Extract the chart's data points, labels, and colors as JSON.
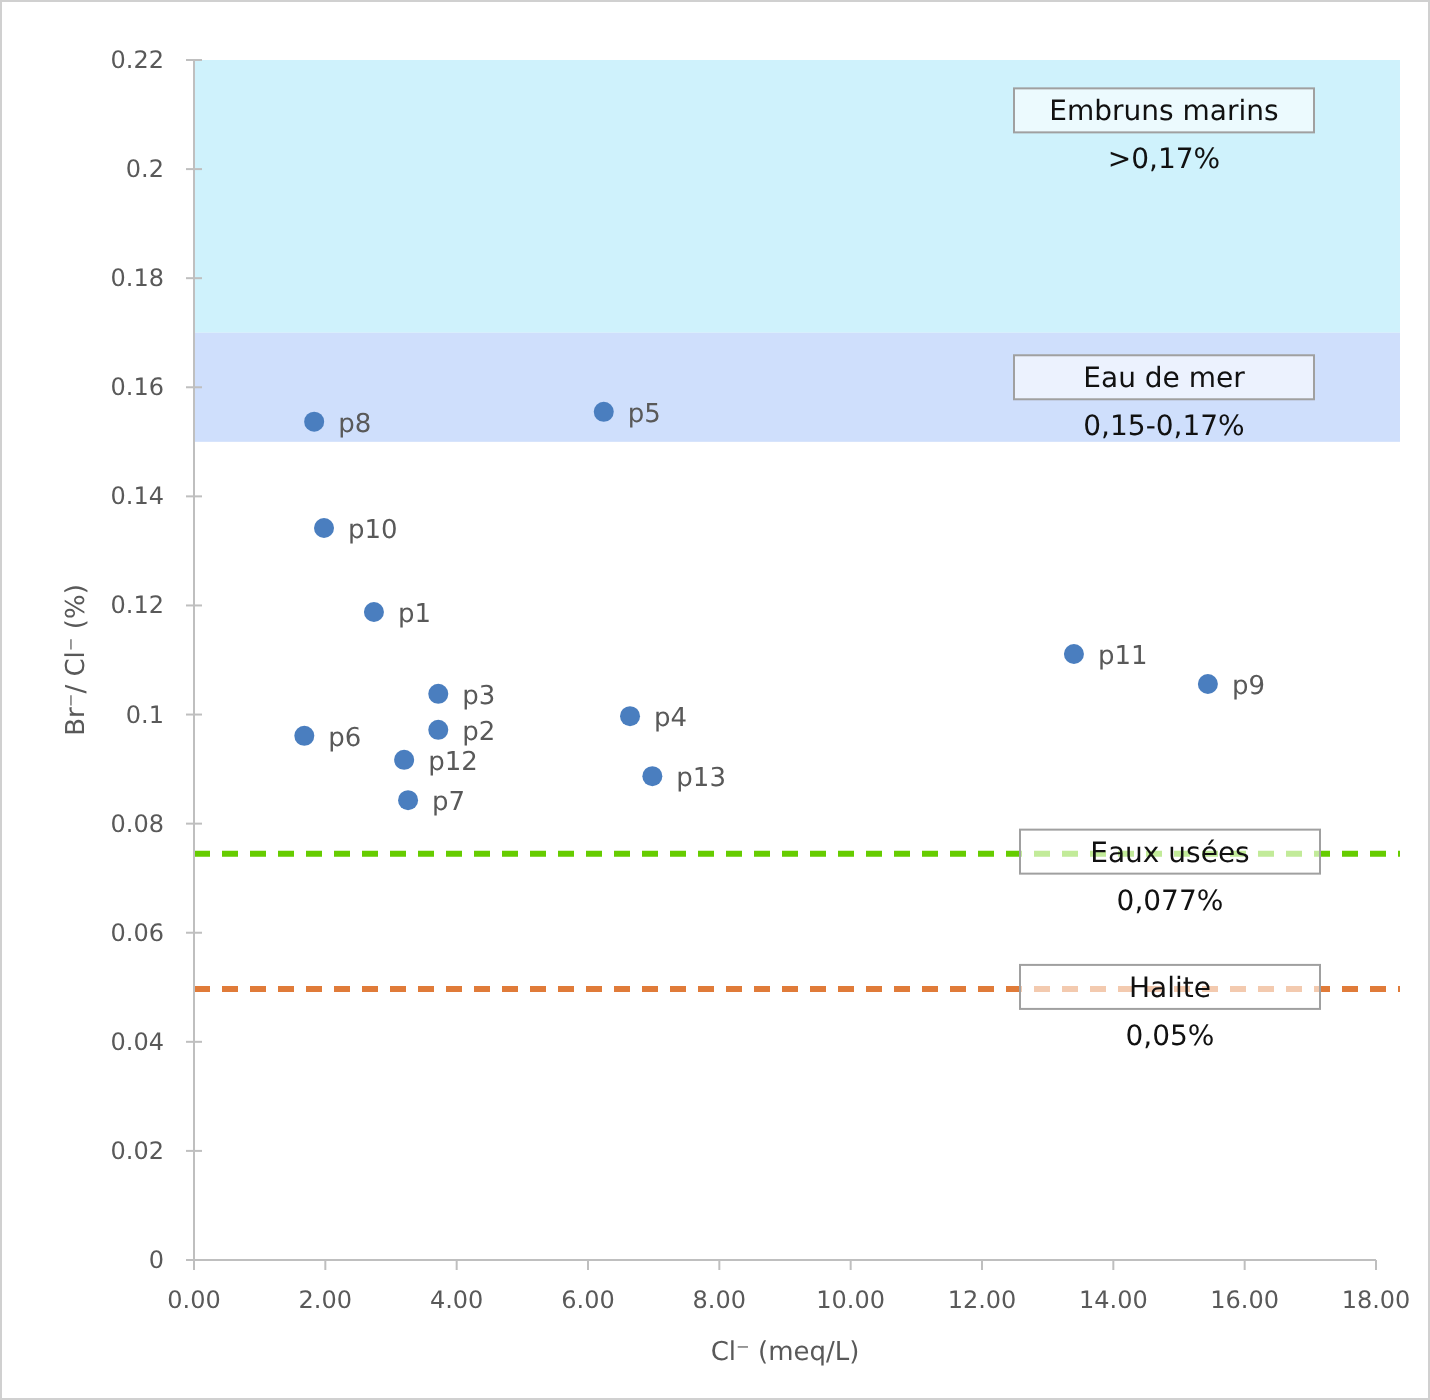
{
  "chart_data": {
    "type": "scatter",
    "xlabel": "Cl⁻ (meq/L)",
    "ylabel": "Br⁻/ Cl⁻ (%)",
    "series": [
      {
        "color": "#4a7ebf",
        "x": [
          2.74,
          3.72,
          3.72,
          6.64,
          6.24,
          1.68,
          3.26,
          1.83,
          15.44,
          1.98,
          13.4,
          3.2,
          6.98
        ],
        "values": [
          0.1188,
          0.0972,
          0.1038,
          0.0997,
          0.1555,
          0.0961,
          0.0843,
          0.1537,
          0.1056,
          0.1342,
          0.1111,
          0.0917,
          0.0887
        ]
      }
    ],
    "annotations": [
      {
        "text": "p1",
        "x": 2.74,
        "y": 0.1188
      },
      {
        "text": "p2",
        "x": 3.72,
        "y": 0.0972
      },
      {
        "text": "p3",
        "x": 3.72,
        "y": 0.1038
      },
      {
        "text": "p4",
        "x": 6.64,
        "y": 0.0997
      },
      {
        "text": "p5",
        "x": 6.24,
        "y": 0.1555
      },
      {
        "text": "p6",
        "x": 1.68,
        "y": 0.0961
      },
      {
        "text": "p7",
        "x": 3.26,
        "y": 0.0843
      },
      {
        "text": "p8",
        "x": 1.83,
        "y": 0.1537
      },
      {
        "text": "p9",
        "x": 15.44,
        "y": 0.1056
      },
      {
        "text": "p10",
        "x": 1.98,
        "y": 0.1342
      },
      {
        "text": "p11",
        "x": 13.4,
        "y": 0.1111
      },
      {
        "text": "p12",
        "x": 3.2,
        "y": 0.0917
      },
      {
        "text": "p13",
        "x": 6.98,
        "y": 0.0887
      }
    ],
    "bands": [
      {
        "axis": "y",
        "from": 0.17,
        "to": 0.22,
        "label": "Embruns marins\n>0,17%",
        "color": "#cff2fc"
      },
      {
        "axis": "y",
        "from": 0.15,
        "to": 0.17,
        "label": "Eau de mer\n0,15-0,17%",
        "color": "#cfdffc"
      }
    ],
    "ref_lines": [
      {
        "axis": "y",
        "value": 0.0745,
        "label": "Eaux usées\n0,077%",
        "color": "#66cc00",
        "line_style": "dashed"
      },
      {
        "axis": "y",
        "value": 0.0497,
        "label": "Halite\n0,05%",
        "color": "#e07b39",
        "line_style": "dashed"
      }
    ],
    "marker": "circle",
    "grid": false,
    "xlim": [
      0,
      18
    ],
    "xticks": [
      {
        "value": 0,
        "label": "0.00"
      },
      {
        "value": 2,
        "label": "2.00"
      },
      {
        "value": 4,
        "label": "4.00"
      },
      {
        "value": 6,
        "label": "6.00"
      },
      {
        "value": 8,
        "label": "8.00"
      },
      {
        "value": 10,
        "label": "10.00"
      },
      {
        "value": 12,
        "label": "12.00"
      },
      {
        "value": 14,
        "label": "14.00"
      },
      {
        "value": 16,
        "label": "16.00"
      },
      {
        "value": 18,
        "label": "18.00"
      }
    ],
    "ylim": [
      0,
      0.22
    ],
    "yticks": [
      0,
      0.02,
      0.04,
      0.06,
      0.08,
      0.1,
      0.12,
      0.14,
      0.16,
      0.18,
      0.2,
      0.22
    ]
  }
}
